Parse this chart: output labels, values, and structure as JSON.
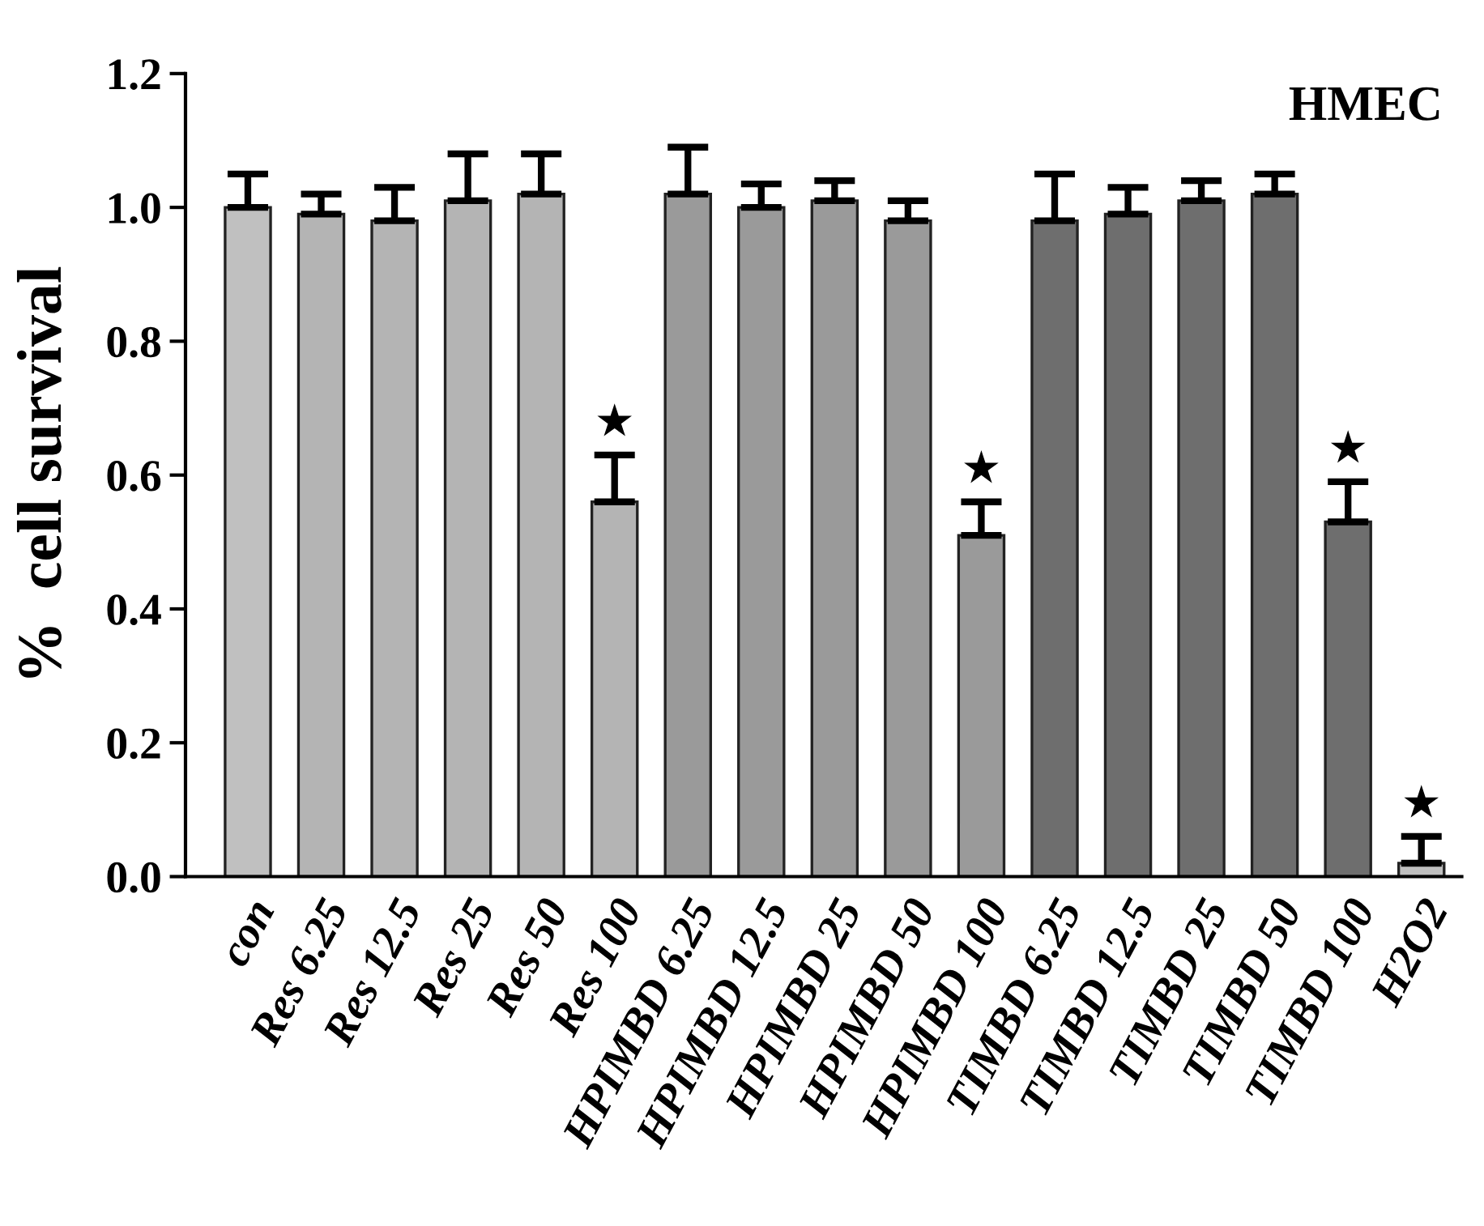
{
  "chart_data": {
    "type": "bar",
    "title": "HMEC",
    "ylabel": "%  cell survival",
    "categories": [
      "con",
      "Res 6.25",
      "Res 12.5",
      "Res 25",
      "Res 50",
      "Res 100",
      "HPIMBD 6.25",
      "HPIMBD 12.5",
      "HPIMBD 25",
      "HPIMBD 50",
      "HPIMBD 100",
      "TIMBD 6.25",
      "TIMBD 12.5",
      "TIMBD 25",
      "TIMBD 50",
      "TIMBD 100",
      "H2O2"
    ],
    "values": [
      1.0,
      0.99,
      0.98,
      1.01,
      1.02,
      0.56,
      1.02,
      1.0,
      1.01,
      0.98,
      0.51,
      0.98,
      0.99,
      1.01,
      1.02,
      0.53,
      0.02
    ],
    "errors": [
      [
        1.0,
        1.05
      ],
      [
        0.99,
        1.02
      ],
      [
        0.98,
        1.03
      ],
      [
        1.01,
        1.08
      ],
      [
        1.02,
        1.08
      ],
      [
        0.56,
        0.63
      ],
      [
        1.02,
        1.09
      ],
      [
        1.0,
        1.035
      ],
      [
        1.01,
        1.04
      ],
      [
        0.98,
        1.01
      ],
      [
        0.51,
        0.56
      ],
      [
        0.98,
        1.05
      ],
      [
        0.99,
        1.03
      ],
      [
        1.01,
        1.04
      ],
      [
        1.02,
        1.05
      ],
      [
        0.53,
        0.59
      ],
      [
        0.02,
        0.06
      ]
    ],
    "colors": [
      "#c0c0c0",
      "#b4b4b4",
      "#b4b4b4",
      "#b4b4b4",
      "#b4b4b4",
      "#b4b4b4",
      "#9a9a9a",
      "#9a9a9a",
      "#9a9a9a",
      "#9a9a9a",
      "#9a9a9a",
      "#6e6e6e",
      "#6e6e6e",
      "#6e6e6e",
      "#6e6e6e",
      "#6e6e6e",
      "#c0c0c0"
    ],
    "annotations": [
      {
        "text": "★",
        "x": "Res 100",
        "y": 0.63
      },
      {
        "text": "★",
        "x": "HPIMBD 100",
        "y": 0.56
      },
      {
        "text": "★",
        "x": "TIMBD 100",
        "y": 0.59
      },
      {
        "text": "★",
        "x": "H2O2",
        "y": 0.06
      }
    ],
    "ylim": [
      0,
      1.2
    ],
    "yticks": [
      {
        "value": 0,
        "label": "0.0"
      },
      {
        "value": 0.2,
        "label": "0.2"
      },
      {
        "value": 0.4,
        "label": "0.4"
      },
      {
        "value": 0.6,
        "label": "0.6"
      },
      {
        "value": 0.8,
        "label": "0.8"
      },
      {
        "value": 1,
        "label": "1.0"
      },
      {
        "value": 1.2,
        "label": "1.2"
      }
    ],
    "grid": false,
    "legend": false
  }
}
